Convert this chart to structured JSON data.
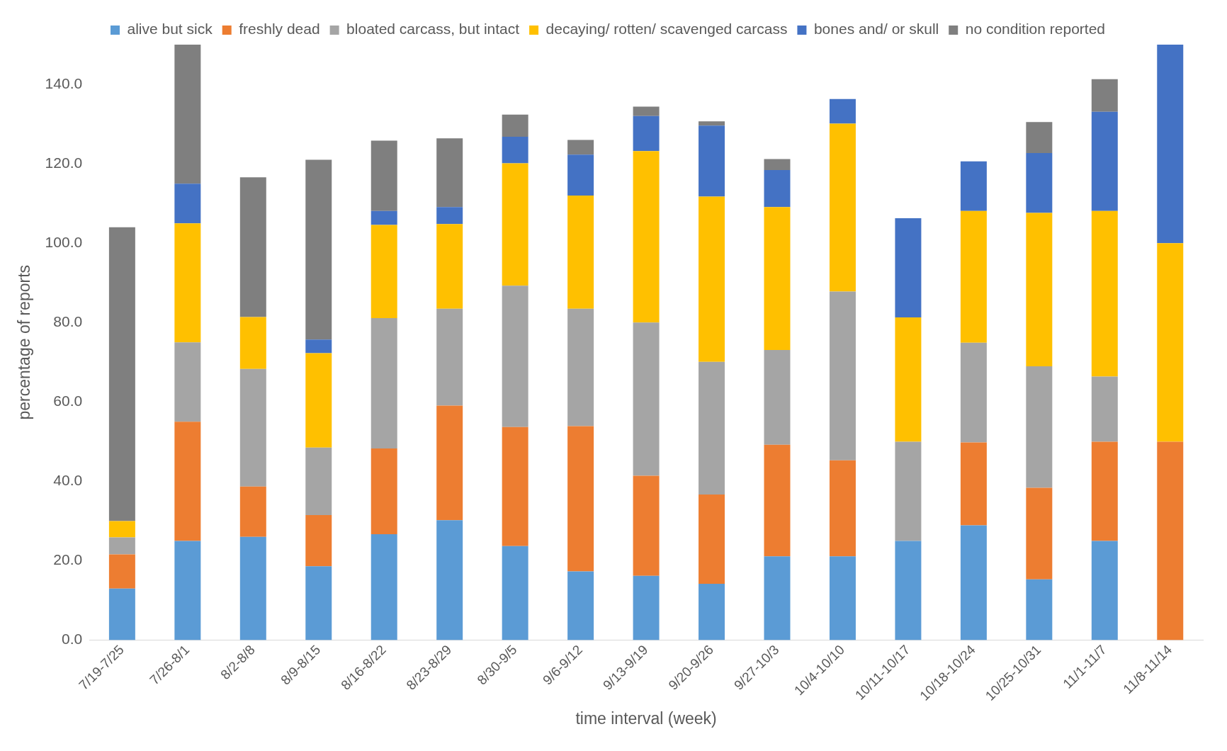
{
  "chart_data": {
    "type": "bar",
    "stacked": true,
    "xlabel": "time interval (week)",
    "ylabel": "percentage of reports",
    "categories": [
      "7/19-7/25",
      "7/26-8/1",
      "8/2-8/8",
      "8/9-8/15",
      "8/16-8/22",
      "8/23-8/29",
      "8/30-9/5",
      "9/6-9/12",
      "9/13-9/19",
      "9/20-9/26",
      "9/27-10/3",
      "10/4-10/10",
      "10/11-10/17",
      "10/18-10/24",
      "10/25-10/31",
      "11/1-11/7",
      "11/8-11/14"
    ],
    "series": [
      {
        "name": "alive but sick",
        "color": "#5b9bd5",
        "values": [
          13,
          25,
          26,
          18.6,
          26.7,
          30.2,
          23.7,
          17.3,
          16.2,
          14.2,
          21.1,
          21.1,
          25,
          28.9,
          15.3,
          25,
          0
        ]
      },
      {
        "name": "freshly dead",
        "color": "#ed7d31",
        "values": [
          8.6,
          30,
          12.7,
          12.9,
          21.6,
          28.9,
          30,
          36.6,
          25.2,
          22.5,
          28.1,
          24.2,
          0,
          20.9,
          23.1,
          25,
          50
        ]
      },
      {
        "name": "bloated carcass, but intact",
        "color": "#a5a5a5",
        "values": [
          4.3,
          20,
          29.6,
          17,
          32.8,
          24.4,
          35.6,
          29.6,
          38.6,
          33.4,
          23.9,
          42.5,
          25,
          25.1,
          30.6,
          16.4,
          0
        ]
      },
      {
        "name": "decaying/ rotten/ scavenged carcass",
        "color": "#ffc000",
        "values": [
          4.1,
          30,
          13.1,
          23.8,
          23.5,
          21.3,
          30.8,
          28.5,
          43.2,
          41.6,
          36,
          42.3,
          31.3,
          33.2,
          38.6,
          41.7,
          50
        ]
      },
      {
        "name": "bones and/ or skull",
        "color": "#4472c4",
        "values": [
          0,
          10,
          0,
          3.4,
          3.5,
          4.3,
          6.7,
          10.3,
          8.8,
          17.9,
          9.3,
          6.2,
          25,
          12.5,
          15.1,
          25,
          50
        ]
      },
      {
        "name": "no condition reported",
        "color": "#7f7f7f",
        "values": [
          74,
          35,
          35.2,
          45.3,
          17.7,
          17.3,
          5.6,
          3.7,
          2.4,
          1.1,
          2.8,
          0,
          0,
          0,
          7.8,
          8.2,
          0
        ]
      }
    ],
    "ylim": [
      0,
      150
    ],
    "yticks": [
      {
        "value": 0,
        "label": "0.0"
      },
      {
        "value": 20,
        "label": "20.0"
      },
      {
        "value": 40,
        "label": "40.0"
      },
      {
        "value": 60,
        "label": "60.0"
      },
      {
        "value": 80,
        "label": "80.0"
      },
      {
        "value": 100,
        "label": "100.0"
      },
      {
        "value": 120,
        "label": "120.0"
      },
      {
        "value": 140,
        "label": "140.0"
      }
    ],
    "grid": false,
    "legend": "top"
  }
}
